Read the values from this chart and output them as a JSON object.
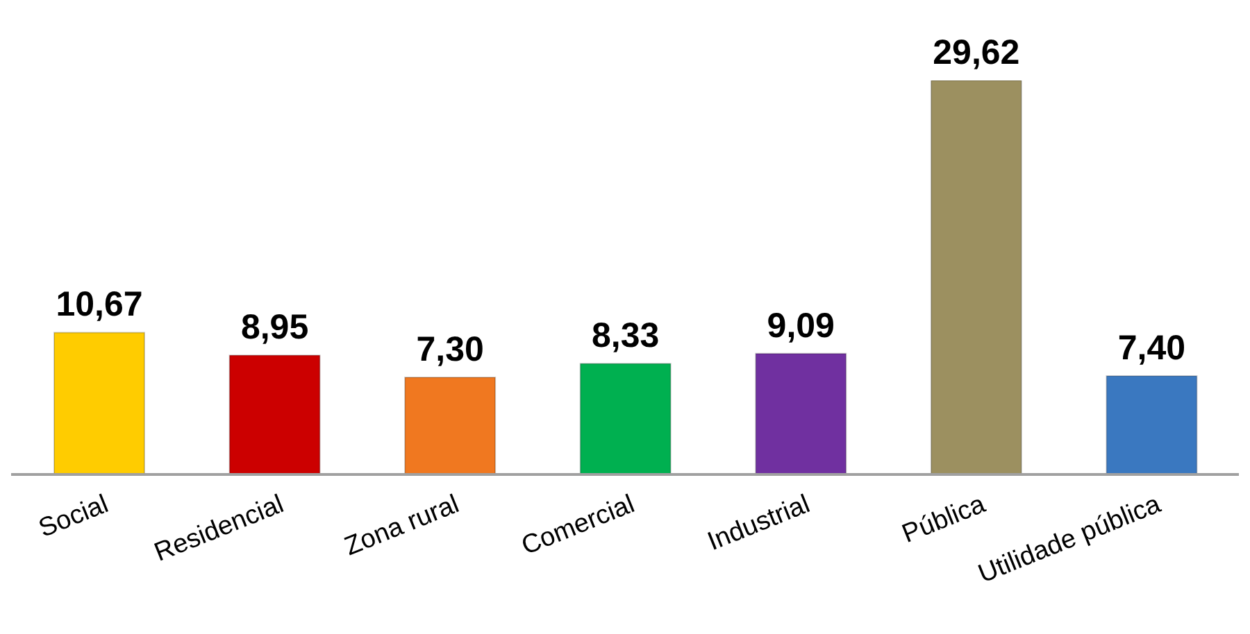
{
  "chart_data": {
    "type": "bar",
    "categories": [
      "Social",
      "Residencial",
      "Zona rural",
      "Comercial",
      "Industrial",
      "Pública",
      "Utilidade pública"
    ],
    "values": [
      10.67,
      8.95,
      7.3,
      8.33,
      9.09,
      29.62,
      7.4
    ],
    "value_labels": [
      "10,67",
      "8,95",
      "7,30",
      "8,33",
      "9,09",
      "29,62",
      "7,40"
    ],
    "colors": [
      "#ffcc00",
      "#cc0000",
      "#f07820",
      "#00b050",
      "#7030a0",
      "#9c9060",
      "#3a78c0"
    ],
    "grid": false,
    "legend": false
  }
}
